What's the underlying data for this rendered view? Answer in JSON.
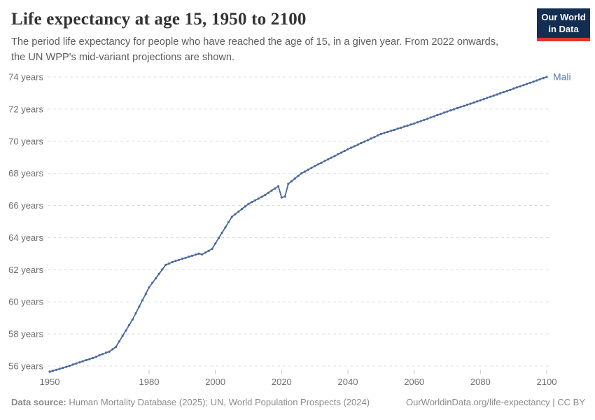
{
  "header": {
    "title": "Life expectancy at age 15, 1950 to 2100",
    "subtitle": "The period life expectancy for people who have reached the age of 15, in a given year. From 2022 onwards, the UN WPP's mid-variant projections are shown."
  },
  "logo": {
    "line1": "Our World",
    "line2": "in Data",
    "bg_color": "#132e52",
    "accent_color": "#e0362b"
  },
  "chart_data": {
    "type": "line",
    "title": "Life expectancy at age 15, 1950 to 2100",
    "xlabel": "",
    "ylabel": "",
    "xlim": [
      1950,
      2100
    ],
    "ylim": [
      55.3,
      74.7
    ],
    "x_ticks": [
      1950,
      1980,
      2000,
      2020,
      2040,
      2060,
      2080,
      2100
    ],
    "y_ticks": [
      56,
      58,
      60,
      62,
      64,
      66,
      68,
      70,
      72,
      74
    ],
    "y_tick_suffix": " years",
    "grid": "horizontal-dashed",
    "grid_color": "#dcdcdc",
    "tick_color": "#c8c8c8",
    "axis_text_color": "#6e6e6e",
    "legend_position": "end-of-line",
    "series": [
      {
        "name": "Mali",
        "color": "#4C6A9C",
        "label_color": "#5b79ae",
        "x": [
          1950,
          1951,
          1952,
          1953,
          1954,
          1955,
          1956,
          1957,
          1958,
          1959,
          1960,
          1961,
          1962,
          1963,
          1964,
          1965,
          1966,
          1967,
          1968,
          1969,
          1970,
          1971,
          1972,
          1973,
          1974,
          1975,
          1976,
          1977,
          1978,
          1979,
          1980,
          1981,
          1982,
          1983,
          1984,
          1985,
          1986,
          1987,
          1988,
          1989,
          1990,
          1991,
          1992,
          1993,
          1994,
          1995,
          1996,
          1997,
          1998,
          1999,
          2000,
          2001,
          2002,
          2003,
          2004,
          2005,
          2006,
          2007,
          2008,
          2009,
          2010,
          2011,
          2012,
          2013,
          2014,
          2015,
          2016,
          2017,
          2018,
          2019,
          2020,
          2021,
          2022,
          2023,
          2024,
          2025,
          2026,
          2027,
          2028,
          2029,
          2030,
          2031,
          2032,
          2033,
          2034,
          2035,
          2036,
          2037,
          2038,
          2039,
          2040,
          2041,
          2042,
          2043,
          2044,
          2045,
          2046,
          2047,
          2048,
          2049,
          2050,
          2051,
          2052,
          2053,
          2054,
          2055,
          2056,
          2057,
          2058,
          2059,
          2060,
          2061,
          2062,
          2063,
          2064,
          2065,
          2066,
          2067,
          2068,
          2069,
          2070,
          2071,
          2072,
          2073,
          2074,
          2075,
          2076,
          2077,
          2078,
          2079,
          2080,
          2081,
          2082,
          2083,
          2084,
          2085,
          2086,
          2087,
          2088,
          2089,
          2090,
          2091,
          2092,
          2093,
          2094,
          2095,
          2096,
          2097,
          2098,
          2099,
          2100
        ],
        "values": [
          55.65,
          55.71,
          55.77,
          55.83,
          55.89,
          55.95,
          56.02,
          56.09,
          56.16,
          56.23,
          56.3,
          56.37,
          56.43,
          56.5,
          56.58,
          56.67,
          56.75,
          56.83,
          56.9,
          57.05,
          57.2,
          57.54,
          57.88,
          58.22,
          58.56,
          58.9,
          59.3,
          59.7,
          60.1,
          60.5,
          60.9,
          61.18,
          61.46,
          61.74,
          62.02,
          62.3,
          62.38,
          62.47,
          62.55,
          62.61,
          62.68,
          62.74,
          62.81,
          62.87,
          62.94,
          63.0,
          62.95,
          63.07,
          63.18,
          63.3,
          63.63,
          63.97,
          64.3,
          64.63,
          64.97,
          65.3,
          65.46,
          65.62,
          65.78,
          65.94,
          66.1,
          66.21,
          66.32,
          66.43,
          66.54,
          66.65,
          66.79,
          66.93,
          67.06,
          67.2,
          66.5,
          66.55,
          67.35,
          67.51,
          67.68,
          67.84,
          68.0,
          68.11,
          68.23,
          68.34,
          68.45,
          68.56,
          68.66,
          68.77,
          68.87,
          68.98,
          69.08,
          69.19,
          69.29,
          69.4,
          69.5,
          69.6,
          69.69,
          69.79,
          69.88,
          69.98,
          70.07,
          70.17,
          70.26,
          70.36,
          70.45,
          70.52,
          70.58,
          70.65,
          70.71,
          70.78,
          70.84,
          70.91,
          70.97,
          71.04,
          71.1,
          71.18,
          71.25,
          71.33,
          71.4,
          71.48,
          71.55,
          71.63,
          71.7,
          71.78,
          71.85,
          71.92,
          71.99,
          72.06,
          72.13,
          72.2,
          72.27,
          72.34,
          72.41,
          72.48,
          72.55,
          72.62,
          72.7,
          72.77,
          72.84,
          72.91,
          72.99,
          73.06,
          73.13,
          73.2,
          73.28,
          73.35,
          73.42,
          73.49,
          73.57,
          73.64,
          73.71,
          73.78,
          73.86,
          73.93,
          74.0
        ]
      }
    ]
  },
  "footer": {
    "source_label": "Data source:",
    "source_text": " Human Mortality Database (2025); UN, World Population Prospects (2024)",
    "link": "OurWorldinData.org/life-expectancy | CC BY"
  }
}
